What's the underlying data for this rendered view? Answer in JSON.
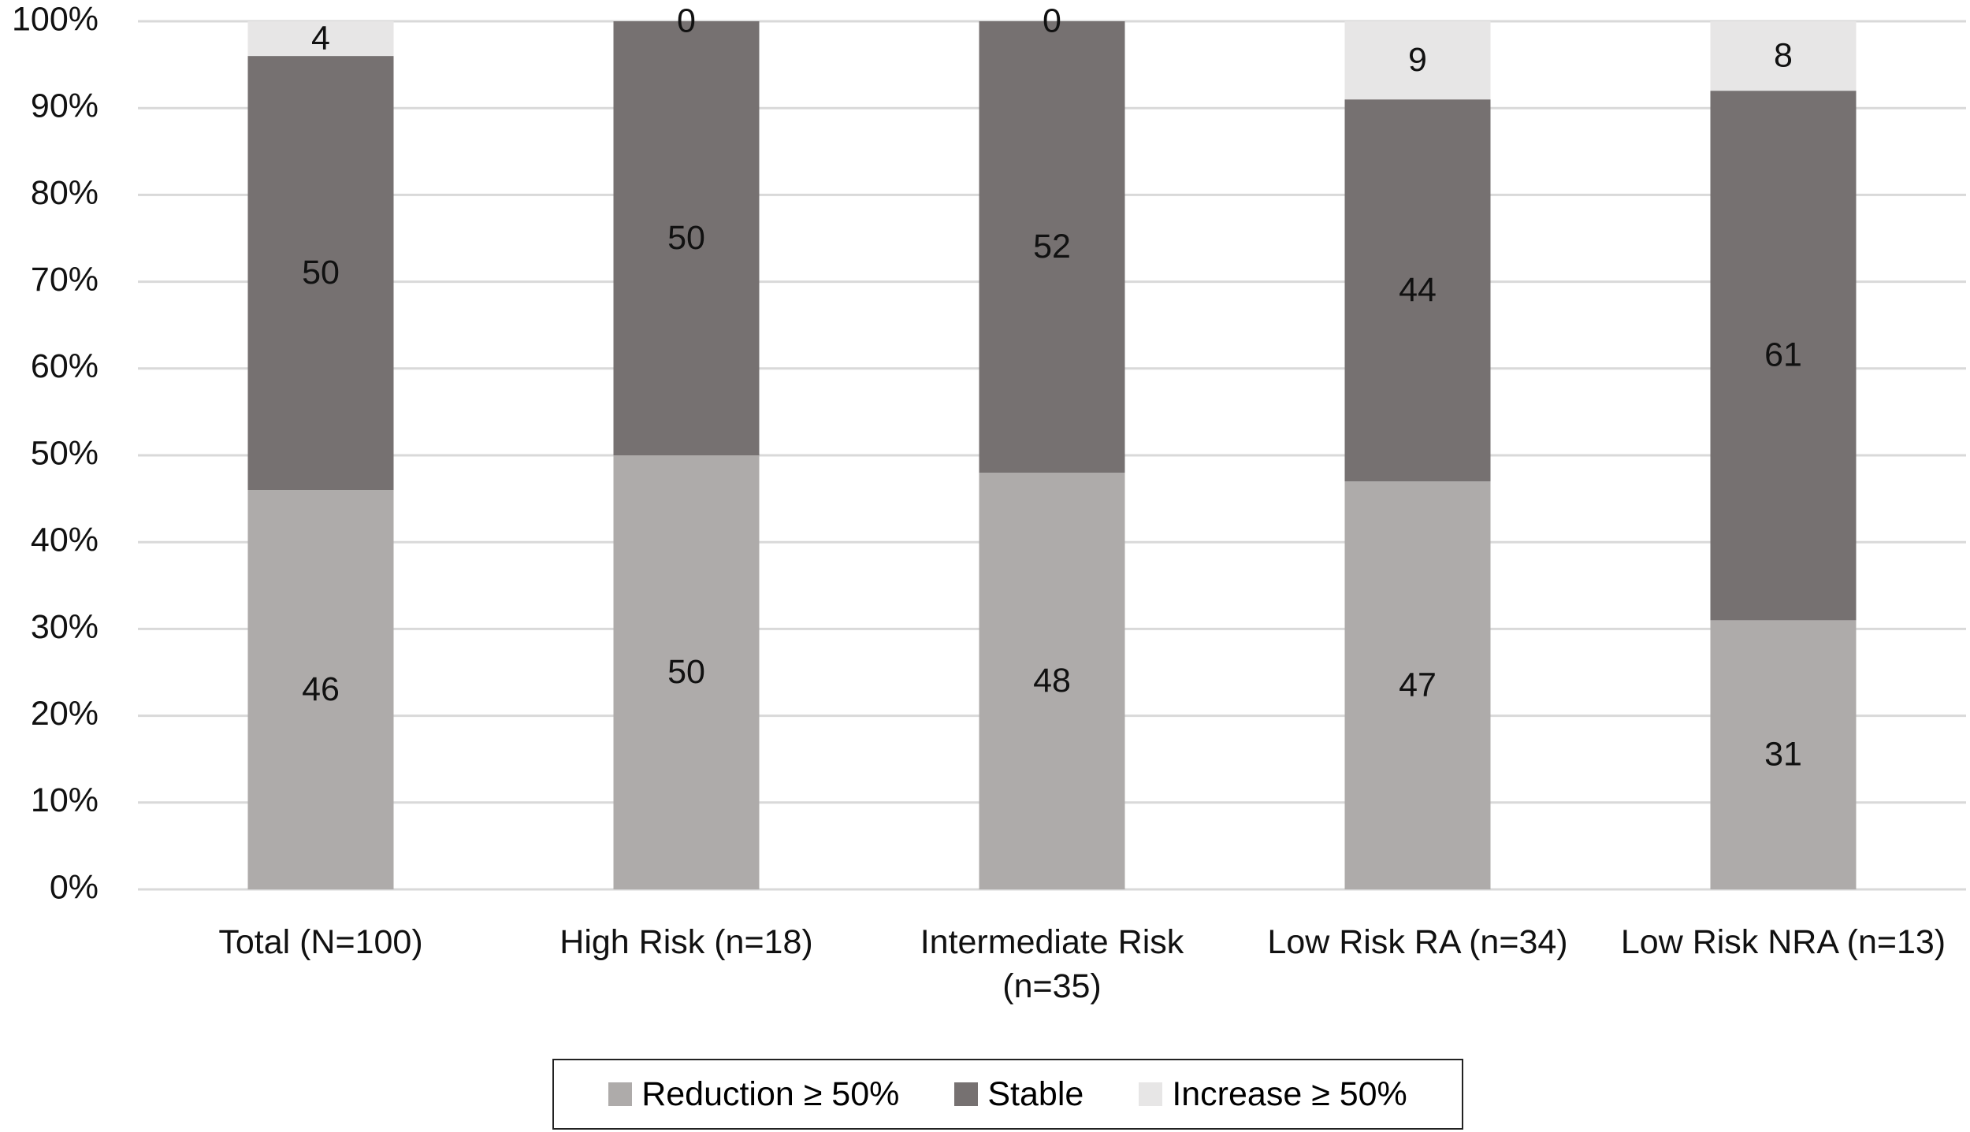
{
  "chart_data": {
    "type": "stacked_bar",
    "categories": [
      "Total (N=100)",
      "High Risk (n=18)",
      "Intermediate Risk (n=35)",
      "Low Risk RA (n=34)",
      "Low Risk NRA (n=13)"
    ],
    "series": [
      {
        "name": "Reduction ≥ 50%",
        "color": "#aeabaa",
        "values": [
          46,
          50,
          48,
          47,
          31
        ]
      },
      {
        "name": "Stable",
        "color": "#767171",
        "values": [
          50,
          50,
          52,
          44,
          61
        ]
      },
      {
        "name": "Increase ≥ 50%",
        "color": "#e7e6e6",
        "values": [
          4,
          0,
          0,
          9,
          8
        ]
      }
    ],
    "ylim": [
      0,
      100
    ],
    "yticks": [
      {
        "value": 0,
        "label": "0%"
      },
      {
        "value": 10,
        "label": "10%"
      },
      {
        "value": 20,
        "label": "20%"
      },
      {
        "value": 30,
        "label": "30%"
      },
      {
        "value": 40,
        "label": "40%"
      },
      {
        "value": 50,
        "label": "50%"
      },
      {
        "value": 60,
        "label": "60%"
      },
      {
        "value": 70,
        "label": "70%"
      },
      {
        "value": 80,
        "label": "80%"
      },
      {
        "value": 90,
        "label": "90%"
      },
      {
        "value": 100,
        "label": "100%"
      }
    ],
    "grid": true,
    "legend": "bottom"
  }
}
